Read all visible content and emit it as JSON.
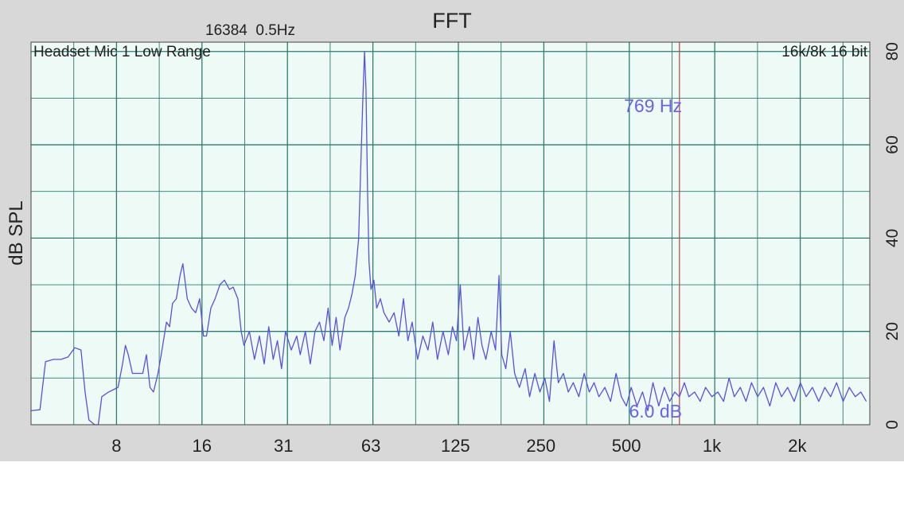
{
  "chart_data": {
    "type": "line",
    "title": "FFT",
    "info": "16384  0.5Hz",
    "source_label": "Headset Mic 1 Low Range",
    "format_label": "16k/8k 16 bit",
    "ylabel": "dB SPL",
    "x_scale": "log",
    "xlim": [
      4,
      3600
    ],
    "ylim": [
      0,
      82
    ],
    "x_ticks": [
      8,
      16,
      31,
      63,
      125,
      250,
      500,
      1000,
      2000
    ],
    "x_tick_labels": [
      "8",
      "16",
      "31",
      "63",
      "125",
      "250",
      "500",
      "1k",
      "2k"
    ],
    "y_ticks": [
      0,
      20,
      40,
      60,
      80
    ],
    "y_tick_labels": [
      "0",
      "20",
      "40",
      "60",
      "80"
    ],
    "grid": true,
    "cursor": {
      "frequency": 769,
      "level": 6.0,
      "frequency_label": "769 Hz",
      "level_label": "6.0 dB"
    },
    "series": [
      {
        "color": "#5a50e0",
        "points": [
          [
            4.0,
            3
          ],
          [
            4.3,
            3.2
          ],
          [
            4.5,
            13.5
          ],
          [
            4.8,
            14
          ],
          [
            5.1,
            14
          ],
          [
            5.4,
            14.5
          ],
          [
            5.7,
            16.5
          ],
          [
            6.0,
            16
          ],
          [
            6.2,
            7
          ],
          [
            6.4,
            1
          ],
          [
            6.7,
            0
          ],
          [
            6.9,
            0
          ],
          [
            7.1,
            6
          ],
          [
            7.5,
            7
          ],
          [
            7.8,
            7.5
          ],
          [
            8.1,
            8
          ],
          [
            8.4,
            13
          ],
          [
            8.6,
            17
          ],
          [
            8.8,
            15
          ],
          [
            9.1,
            11
          ],
          [
            9.5,
            11
          ],
          [
            9.9,
            11
          ],
          [
            10.2,
            15
          ],
          [
            10.5,
            8
          ],
          [
            10.8,
            7
          ],
          [
            11.2,
            11
          ],
          [
            11.5,
            15
          ],
          [
            12.0,
            22
          ],
          [
            12.3,
            21
          ],
          [
            12.6,
            26
          ],
          [
            13.0,
            27
          ],
          [
            13.4,
            32
          ],
          [
            13.7,
            34.5
          ],
          [
            14.2,
            27
          ],
          [
            14.7,
            25
          ],
          [
            15.2,
            24
          ],
          [
            15.7,
            27
          ],
          [
            16.2,
            19
          ],
          [
            16.6,
            19
          ],
          [
            17.2,
            25
          ],
          [
            17.8,
            27
          ],
          [
            18.5,
            30
          ],
          [
            19.2,
            31
          ],
          [
            20.0,
            29
          ],
          [
            20.6,
            29.5
          ],
          [
            21.4,
            27
          ],
          [
            22.0,
            20
          ],
          [
            22.5,
            17
          ],
          [
            23.5,
            20
          ],
          [
            24.5,
            14
          ],
          [
            25.5,
            19
          ],
          [
            26.5,
            13
          ],
          [
            27.5,
            21
          ],
          [
            28.5,
            14
          ],
          [
            29.5,
            18
          ],
          [
            30.5,
            12
          ],
          [
            31.5,
            20
          ],
          [
            33.0,
            16
          ],
          [
            34.5,
            19
          ],
          [
            35.5,
            15
          ],
          [
            37.0,
            20
          ],
          [
            38.5,
            13
          ],
          [
            40.0,
            20
          ],
          [
            41.5,
            22
          ],
          [
            43.0,
            18
          ],
          [
            44.5,
            25
          ],
          [
            46.0,
            17
          ],
          [
            47.5,
            23
          ],
          [
            49.0,
            16
          ],
          [
            51.0,
            23
          ],
          [
            52.5,
            25
          ],
          [
            54.0,
            28
          ],
          [
            55.5,
            32
          ],
          [
            57.0,
            40
          ],
          [
            58.0,
            55
          ],
          [
            59.0,
            70
          ],
          [
            59.8,
            80
          ],
          [
            60.5,
            72
          ],
          [
            61.3,
            50
          ],
          [
            62.0,
            35
          ],
          [
            63.0,
            29
          ],
          [
            64.5,
            31
          ],
          [
            66.0,
            25
          ],
          [
            68.0,
            27
          ],
          [
            70.0,
            24
          ],
          [
            73.0,
            22
          ],
          [
            76.0,
            24
          ],
          [
            79.0,
            19
          ],
          [
            82.0,
            27
          ],
          [
            85.0,
            18
          ],
          [
            88.0,
            22
          ],
          [
            92.0,
            14
          ],
          [
            96.0,
            19
          ],
          [
            100.0,
            16
          ],
          [
            104.0,
            22
          ],
          [
            108.0,
            14
          ],
          [
            113.0,
            20
          ],
          [
            118.0,
            15
          ],
          [
            122.0,
            21
          ],
          [
            126.0,
            18
          ],
          [
            130.0,
            30
          ],
          [
            134.0,
            16
          ],
          [
            140.0,
            21
          ],
          [
            145.0,
            14
          ],
          [
            150.0,
            23
          ],
          [
            155.0,
            17
          ],
          [
            160.0,
            14
          ],
          [
            167.0,
            20
          ],
          [
            173.0,
            16
          ],
          [
            178.0,
            32
          ],
          [
            182.0,
            15
          ],
          [
            188.0,
            12
          ],
          [
            195.0,
            20
          ],
          [
            202.0,
            11
          ],
          [
            210.0,
            8
          ],
          [
            220.0,
            12
          ],
          [
            228.0,
            6
          ],
          [
            238.0,
            11
          ],
          [
            248.0,
            7
          ],
          [
            258.0,
            10
          ],
          [
            268.0,
            5
          ],
          [
            278.0,
            18
          ],
          [
            288.0,
            9
          ],
          [
            300.0,
            11
          ],
          [
            312.0,
            7
          ],
          [
            325.0,
            9
          ],
          [
            340.0,
            6
          ],
          [
            355.0,
            11
          ],
          [
            370.0,
            7
          ],
          [
            385.0,
            9
          ],
          [
            400.0,
            6
          ],
          [
            420.0,
            8
          ],
          [
            440.0,
            5
          ],
          [
            460.0,
            11
          ],
          [
            480.0,
            6
          ],
          [
            500.0,
            4
          ],
          [
            520.0,
            8
          ],
          [
            545.0,
            4
          ],
          [
            570.0,
            7
          ],
          [
            595.0,
            3
          ],
          [
            620.0,
            9
          ],
          [
            650.0,
            4
          ],
          [
            680.0,
            8
          ],
          [
            710.0,
            5
          ],
          [
            740.0,
            7
          ],
          [
            769.0,
            6
          ],
          [
            800.0,
            9
          ],
          [
            830.0,
            6
          ],
          [
            870.0,
            7
          ],
          [
            910.0,
            5
          ],
          [
            950.0,
            8
          ],
          [
            1000.0,
            6
          ],
          [
            1050.0,
            7
          ],
          [
            1100.0,
            5
          ],
          [
            1150.0,
            10
          ],
          [
            1200.0,
            6
          ],
          [
            1260.0,
            8
          ],
          [
            1320.0,
            5
          ],
          [
            1380.0,
            9
          ],
          [
            1450.0,
            6
          ],
          [
            1520.0,
            8
          ],
          [
            1600.0,
            4
          ],
          [
            1680.0,
            9
          ],
          [
            1760.0,
            6
          ],
          [
            1850.0,
            8
          ],
          [
            1950.0,
            5
          ],
          [
            2050.0,
            9
          ],
          [
            2150.0,
            6
          ],
          [
            2260.0,
            8
          ],
          [
            2380.0,
            5
          ],
          [
            2500.0,
            8
          ],
          [
            2620.0,
            6
          ],
          [
            2750.0,
            9
          ],
          [
            2900.0,
            5
          ],
          [
            3050.0,
            8
          ],
          [
            3200.0,
            6
          ],
          [
            3350.0,
            7
          ],
          [
            3500.0,
            5
          ]
        ]
      }
    ]
  }
}
